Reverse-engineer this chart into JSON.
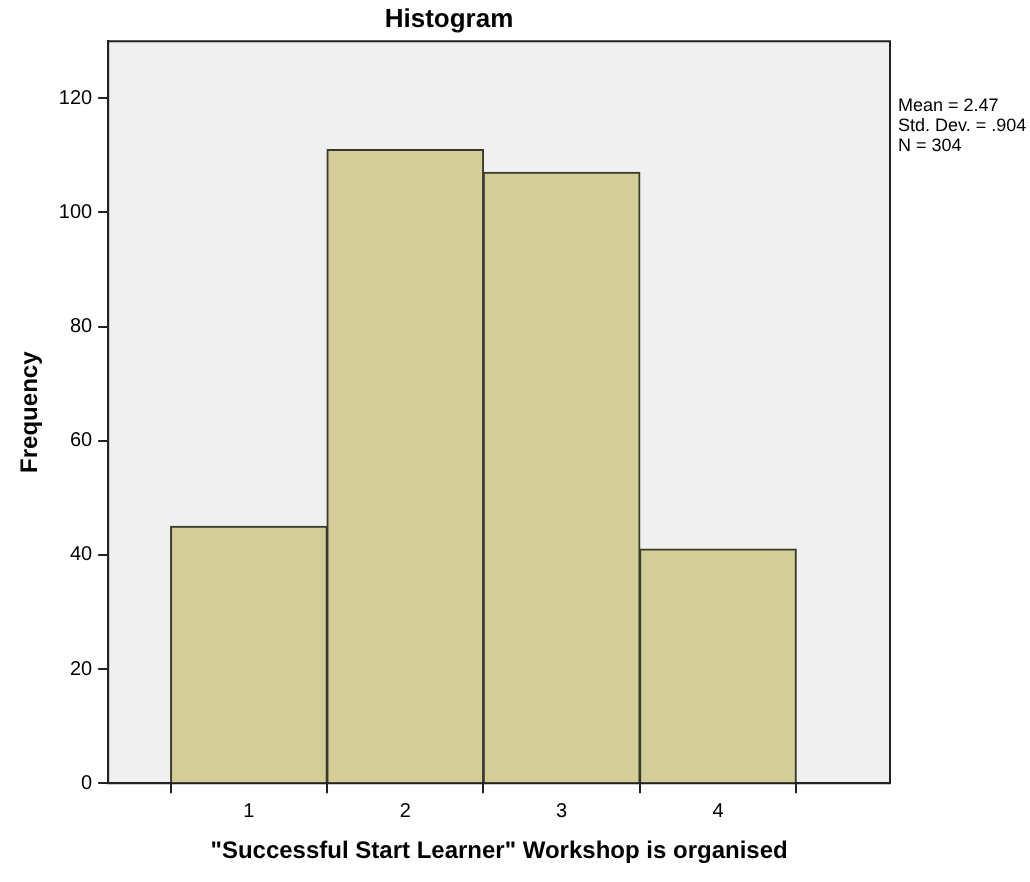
{
  "chart_data": {
    "type": "histogram",
    "title": "Histogram",
    "xlabel": "\"Successful Start Learner\" Workshop is organised",
    "ylabel": "Frequency",
    "bins": [
      0.5,
      1.5,
      2.5,
      3.5,
      4.5
    ],
    "values": [
      45,
      111,
      107,
      41
    ],
    "color": "#d3ce97",
    "xlim": [
      0.1,
      5.1
    ],
    "xticks": [
      1,
      2,
      3,
      4
    ],
    "ylim": [
      0,
      130
    ],
    "yticks": [
      0,
      20,
      40,
      60,
      80,
      100,
      120
    ],
    "grid": false,
    "legend": false,
    "annotations": [
      "Mean = 2.47",
      "Std. Dev. = .904",
      "N = 304"
    ]
  }
}
